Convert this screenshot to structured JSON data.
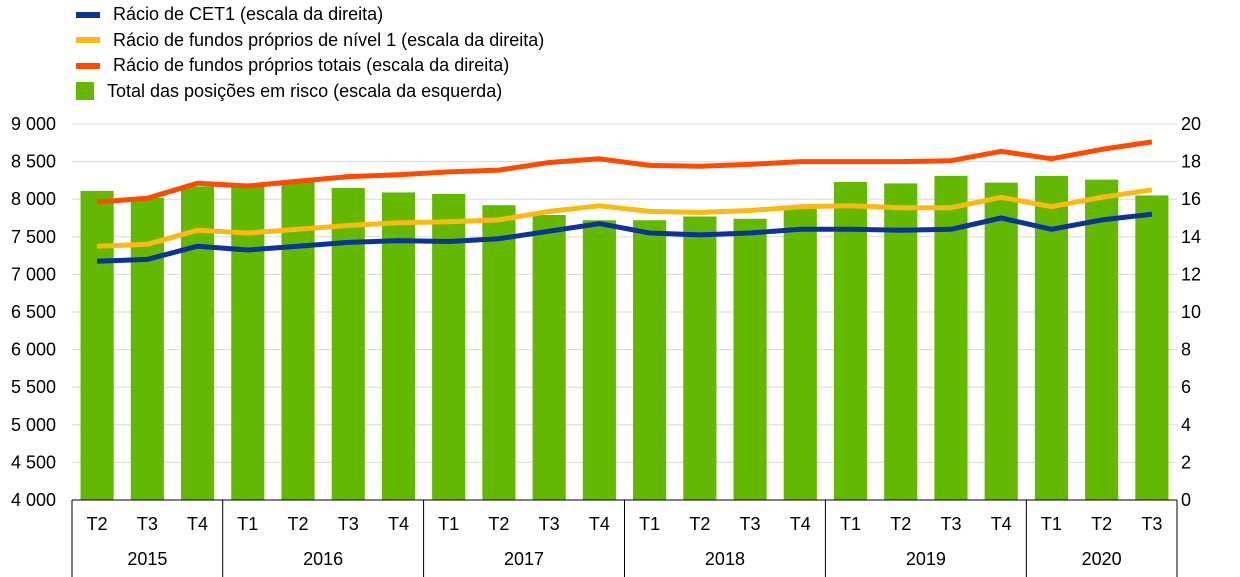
{
  "chart_data": {
    "type": "bar",
    "title": "",
    "legend": {
      "position": "top-left",
      "entries": [
        {
          "label": "Rácio de CET1 (escala da direita)",
          "color": "#0c3497",
          "kind": "line"
        },
        {
          "label": "Rácio de fundos próprios de nível 1 (escala da direita)",
          "color": "#fbb914",
          "kind": "line"
        },
        {
          "label": "Rácio de fundos próprios totais (escala da direita)",
          "color": "#ff4b00",
          "kind": "line"
        },
        {
          "label": "Total das posições em risco (escala da esquerda)",
          "color": "#65b800",
          "kind": "bar"
        }
      ]
    },
    "categories": [
      "T2",
      "T3",
      "T4",
      "T1",
      "T2",
      "T3",
      "T4",
      "T1",
      "T2",
      "T3",
      "T4",
      "T1",
      "T2",
      "T3",
      "T4",
      "T1",
      "T2",
      "T3",
      "T4",
      "T1",
      "T2",
      "T3"
    ],
    "years": [
      {
        "label": "2015",
        "count": 3
      },
      {
        "label": "2016",
        "count": 4
      },
      {
        "label": "2017",
        "count": 4
      },
      {
        "label": "2018",
        "count": 4
      },
      {
        "label": "2019",
        "count": 4
      },
      {
        "label": "2020",
        "count": 3
      }
    ],
    "y_left": {
      "ylim": [
        4000,
        9000
      ],
      "ticks": [
        4000,
        4500,
        5000,
        5500,
        6000,
        6500,
        7000,
        7500,
        8000,
        8500,
        9000
      ],
      "tick_labels": [
        "4 000",
        "4 500",
        "5 000",
        "5 500",
        "6 000",
        "6 500",
        "7 000",
        "7 500",
        "8 000",
        "8 500",
        "9 000"
      ]
    },
    "y_right": {
      "ylim": [
        0,
        20
      ],
      "ticks": [
        0,
        2,
        4,
        6,
        8,
        10,
        12,
        14,
        16,
        18,
        20
      ],
      "tick_labels": [
        "0",
        "2",
        "4",
        "6",
        "8",
        "10",
        "12",
        "14",
        "16",
        "18",
        "20"
      ]
    },
    "grid": true,
    "series": [
      {
        "name": "Total das posições em risco (escala da esquerda)",
        "type": "bar",
        "axis": "left",
        "color": "#65b800",
        "values": [
          8110,
          8020,
          8170,
          8210,
          8240,
          8150,
          8090,
          8070,
          7920,
          7790,
          7720,
          7720,
          7770,
          7740,
          7900,
          8230,
          8210,
          8310,
          8220,
          8310,
          8260,
          8050
        ]
      },
      {
        "name": "Rácio de CET1 (escala da direita)",
        "type": "line",
        "axis": "right",
        "color": "#0c3497",
        "values": [
          12.7,
          12.8,
          13.5,
          13.3,
          13.5,
          13.7,
          13.8,
          13.75,
          13.9,
          14.3,
          14.7,
          14.2,
          14.1,
          14.2,
          14.4,
          14.4,
          14.35,
          14.4,
          15.0,
          14.4,
          14.9,
          15.2
        ]
      },
      {
        "name": "Rácio de fundos próprios de nível 1 (escala da direita)",
        "type": "line",
        "axis": "right",
        "color": "#fbb914",
        "values": [
          13.5,
          13.6,
          14.35,
          14.2,
          14.4,
          14.6,
          14.75,
          14.8,
          14.9,
          15.35,
          15.65,
          15.35,
          15.3,
          15.4,
          15.6,
          15.65,
          15.55,
          15.55,
          16.1,
          15.6,
          16.1,
          16.5
        ]
      },
      {
        "name": "Rácio de fundos próprios totais (escala da direita)",
        "type": "line",
        "axis": "right",
        "color": "#ff4b00",
        "values": [
          15.85,
          16.05,
          16.85,
          16.7,
          16.95,
          17.2,
          17.3,
          17.45,
          17.55,
          17.95,
          18.15,
          17.8,
          17.75,
          17.85,
          18.0,
          18.0,
          18.0,
          18.05,
          18.55,
          18.15,
          18.65,
          19.05
        ]
      }
    ]
  }
}
